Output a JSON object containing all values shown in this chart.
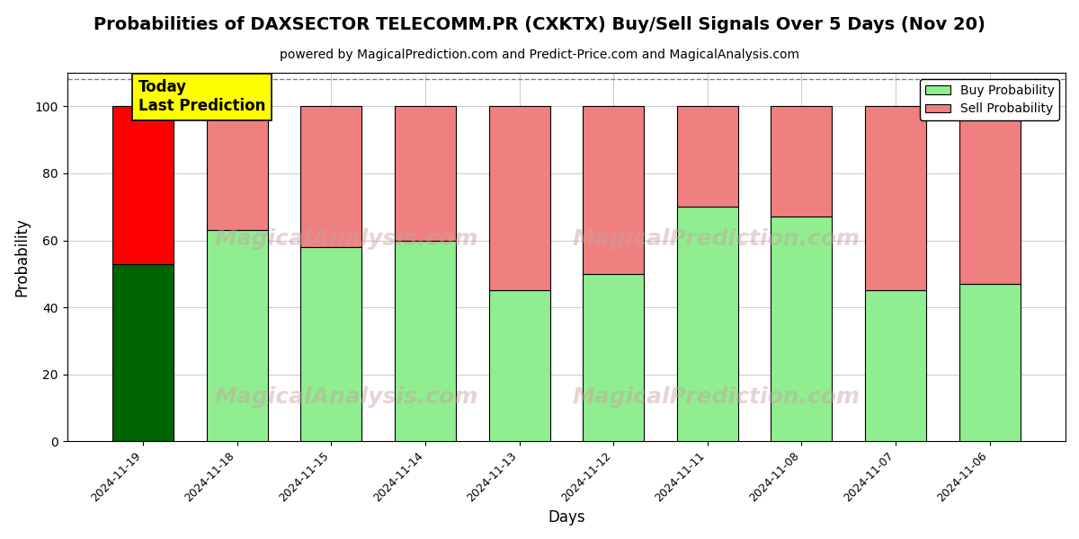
{
  "title": "Probabilities of DAXSECTOR TELECOMM.PR (CXKTX) Buy/Sell Signals Over 5 Days (Nov 20)",
  "subtitle": "powered by MagicalPrediction.com and Predict-Price.com and MagicalAnalysis.com",
  "xlabel": "Days",
  "ylabel": "Probability",
  "categories": [
    "2024-11-19",
    "2024-11-18",
    "2024-11-15",
    "2024-11-14",
    "2024-11-13",
    "2024-11-12",
    "2024-11-11",
    "2024-11-08",
    "2024-11-07",
    "2024-11-06"
  ],
  "buy_values": [
    53,
    63,
    58,
    60,
    45,
    50,
    70,
    67,
    45,
    47
  ],
  "sell_values": [
    47,
    37,
    42,
    40,
    55,
    50,
    30,
    33,
    55,
    53
  ],
  "today_buy_color": "#006400",
  "today_sell_color": "#ff0000",
  "buy_color": "#90EE90",
  "sell_color": "#F08080",
  "today_label_bg": "#ffff00",
  "today_label_text": "Today\nLast Prediction",
  "legend_buy_label": "Buy Probability",
  "legend_sell_label": "Sell Probability",
  "ylim": [
    0,
    110
  ],
  "dashed_line_y": 108,
  "bar_width": 0.65,
  "background_color": "#ffffff",
  "grid_color": "#cccccc",
  "title_fontsize": 14,
  "subtitle_fontsize": 10,
  "axis_label_fontsize": 12
}
